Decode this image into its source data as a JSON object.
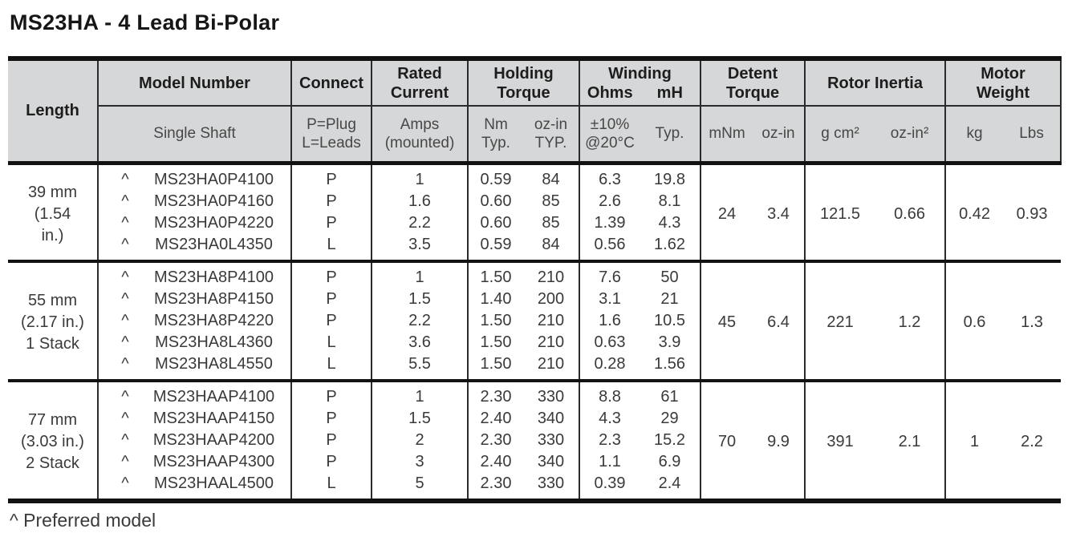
{
  "title": "MS23HA - 4 Lead Bi-Polar",
  "footnote": "^ Preferred model",
  "colors": {
    "header_bg": "#d6d7d8",
    "thick_border": "#121212",
    "thin_border": "#2b2b2b",
    "text": "#3a3a3a"
  },
  "table": {
    "columns": {
      "length": {
        "label": "Length"
      },
      "model": {
        "label": "Model Number",
        "sub": "Single Shaft"
      },
      "connect": {
        "label": "Connect",
        "sub_lines": [
          "P=Plug",
          "L=Leads"
        ]
      },
      "rated_current": {
        "label_lines": [
          "Rated",
          "Current"
        ],
        "sub_lines": [
          "Amps",
          "(mounted)"
        ]
      },
      "holding_torque": {
        "label_lines": [
          "Holding",
          "Torque"
        ],
        "sub1_lines": [
          "Nm",
          "Typ."
        ],
        "sub2_lines": [
          "oz-in",
          "TYP."
        ]
      },
      "winding": {
        "label_line1": "Winding",
        "label_line2_left": "Ohms",
        "label_line2_right": "mH",
        "sub1_lines": [
          "±10%",
          "@20°C"
        ],
        "sub2": "Typ."
      },
      "detent_torque": {
        "label_lines": [
          "Detent",
          "Torque"
        ],
        "sub1": "mNm",
        "sub2": "oz-in"
      },
      "rotor_inertia": {
        "label": "Rotor Inertia",
        "sub1": "g cm²",
        "sub2": "oz-in²"
      },
      "motor_weight": {
        "label_lines": [
          "Motor",
          "Weight"
        ],
        "sub1": "kg",
        "sub2": "Lbs"
      }
    },
    "groups": [
      {
        "length_lines": [
          "39 mm",
          "(1.54",
          "in.)"
        ],
        "detent": [
          "24",
          "3.4"
        ],
        "rotor": [
          "121.5",
          "0.66"
        ],
        "weight": [
          "0.42",
          "0.93"
        ],
        "rows": [
          {
            "preferred": "^",
            "model": "MS23HA0P4100",
            "connect": "P",
            "amps": "1",
            "nm_typ": "0.59",
            "ozin_typ": "84",
            "ohms": "6.3",
            "mh": "19.8"
          },
          {
            "preferred": "^",
            "model": "MS23HA0P4160",
            "connect": "P",
            "amps": "1.6",
            "nm_typ": "0.60",
            "ozin_typ": "85",
            "ohms": "2.6",
            "mh": "8.1"
          },
          {
            "preferred": "^",
            "model": "MS23HA0P4220",
            "connect": "P",
            "amps": "2.2",
            "nm_typ": "0.60",
            "ozin_typ": "85",
            "ohms": "1.39",
            "mh": "4.3"
          },
          {
            "preferred": "^",
            "model": "MS23HA0L4350",
            "connect": "L",
            "amps": "3.5",
            "nm_typ": "0.59",
            "ozin_typ": "84",
            "ohms": "0.56",
            "mh": "1.62"
          }
        ]
      },
      {
        "length_lines": [
          "55 mm",
          "(2.17 in.)",
          "1 Stack"
        ],
        "detent": [
          "45",
          "6.4"
        ],
        "rotor": [
          "221",
          "1.2"
        ],
        "weight": [
          "0.6",
          "1.3"
        ],
        "rows": [
          {
            "preferred": "^",
            "model": "MS23HA8P4100",
            "connect": "P",
            "amps": "1",
            "nm_typ": "1.50",
            "ozin_typ": "210",
            "ohms": "7.6",
            "mh": "50"
          },
          {
            "preferred": "^",
            "model": "MS23HA8P4150",
            "connect": "P",
            "amps": "1.5",
            "nm_typ": "1.40",
            "ozin_typ": "200",
            "ohms": "3.1",
            "mh": "21"
          },
          {
            "preferred": "^",
            "model": "MS23HA8P4220",
            "connect": "P",
            "amps": "2.2",
            "nm_typ": "1.50",
            "ozin_typ": "210",
            "ohms": "1.6",
            "mh": "10.5"
          },
          {
            "preferred": "^",
            "model": "MS23HA8L4360",
            "connect": "L",
            "amps": "3.6",
            "nm_typ": "1.50",
            "ozin_typ": "210",
            "ohms": "0.63",
            "mh": "3.9"
          },
          {
            "preferred": "^",
            "model": "MS23HA8L4550",
            "connect": "L",
            "amps": "5.5",
            "nm_typ": "1.50",
            "ozin_typ": "210",
            "ohms": "0.28",
            "mh": "1.56"
          }
        ]
      },
      {
        "length_lines": [
          "77 mm",
          "(3.03 in.)",
          "2 Stack"
        ],
        "detent": [
          "70",
          "9.9"
        ],
        "rotor": [
          "391",
          "2.1"
        ],
        "weight": [
          "1",
          "2.2"
        ],
        "rows": [
          {
            "preferred": "^",
            "model": "MS23HAAP4100",
            "connect": "P",
            "amps": "1",
            "nm_typ": "2.30",
            "ozin_typ": "330",
            "ohms": "8.8",
            "mh": "61"
          },
          {
            "preferred": "^",
            "model": "MS23HAAP4150",
            "connect": "P",
            "amps": "1.5",
            "nm_typ": "2.40",
            "ozin_typ": "340",
            "ohms": "4.3",
            "mh": "29"
          },
          {
            "preferred": "^",
            "model": "MS23HAAP4200",
            "connect": "P",
            "amps": "2",
            "nm_typ": "2.30",
            "ozin_typ": "330",
            "ohms": "2.3",
            "mh": "15.2"
          },
          {
            "preferred": "^",
            "model": "MS23HAAP4300",
            "connect": "P",
            "amps": "3",
            "nm_typ": "2.40",
            "ozin_typ": "340",
            "ohms": "1.1",
            "mh": "6.9"
          },
          {
            "preferred": "^",
            "model": "MS23HAAL4500",
            "connect": "L",
            "amps": "5",
            "nm_typ": "2.30",
            "ozin_typ": "330",
            "ohms": "0.39",
            "mh": "2.4"
          }
        ]
      }
    ]
  }
}
